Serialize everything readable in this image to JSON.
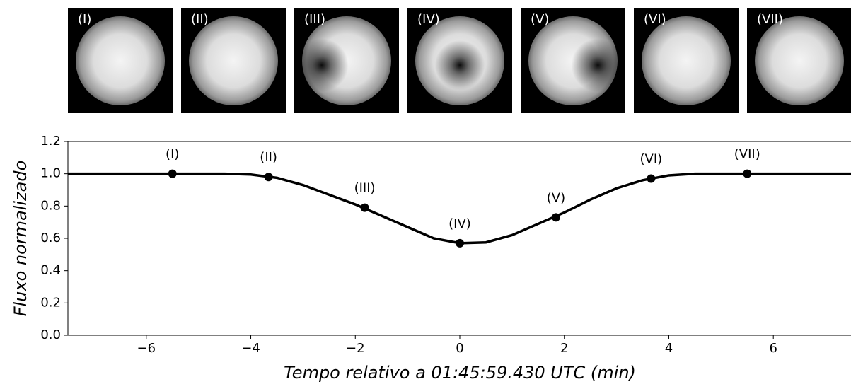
{
  "chart_data": {
    "type": "line",
    "xlabel": "Tempo relativo a 01:45:59.430 UTC (min)",
    "ylabel": "Fluxo normalizado",
    "xlim": [
      -7.5,
      7.5
    ],
    "ylim": [
      0,
      1.2
    ],
    "xticks": [
      {
        "value": -6,
        "label": "−6"
      },
      {
        "value": -4,
        "label": "−4"
      },
      {
        "value": -2,
        "label": "−2"
      },
      0,
      2,
      4,
      6
    ],
    "yticks": [
      {
        "value": 0,
        "label": "0.0"
      },
      0.2,
      0.4,
      0.6,
      0.8,
      {
        "value": 1,
        "label": "1.0"
      },
      1.2
    ],
    "grid": false,
    "image_labels": [
      "(I)",
      "(II)",
      "(III)",
      "(IV)",
      "(V)",
      "(VI)",
      "(VII)"
    ],
    "series": [
      {
        "type": "line",
        "color": "#000000",
        "x": [
          -7.5,
          -5.5,
          -4.5,
          -4,
          -3.5,
          -3,
          -2.5,
          -2,
          -1.5,
          -1,
          -0.5,
          0,
          0.5,
          1,
          1.5,
          2,
          2.5,
          3,
          3.5,
          4,
          4.5,
          5.5,
          7.5
        ],
        "values": [
          1,
          1,
          1,
          0.995,
          0.975,
          0.93,
          0.87,
          0.81,
          0.74,
          0.67,
          0.6,
          0.57,
          0.575,
          0.62,
          0.69,
          0.76,
          0.84,
          0.91,
          0.96,
          0.99,
          1,
          1,
          1
        ]
      },
      {
        "type": "scatter",
        "color": "#000000",
        "x": [
          -5.5,
          -3.66,
          -1.82,
          0,
          1.84,
          3.66,
          5.5
        ],
        "values": [
          1,
          0.98,
          0.79,
          0.57,
          0.73,
          0.97,
          1
        ],
        "labels": [
          "(I)",
          "(II)",
          "(III)",
          "(IV)",
          "(V)",
          "(VI)",
          "(VII)"
        ]
      }
    ]
  }
}
